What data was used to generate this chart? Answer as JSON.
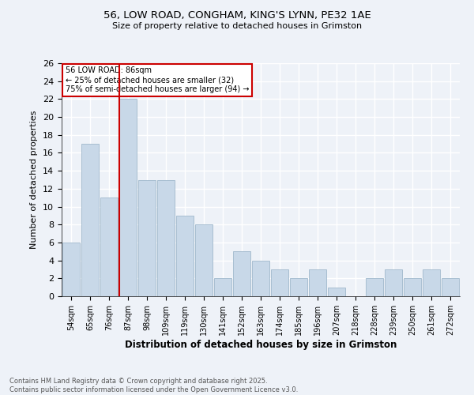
{
  "title_line1": "56, LOW ROAD, CONGHAM, KING'S LYNN, PE32 1AE",
  "title_line2": "Size of property relative to detached houses in Grimston",
  "xlabel": "Distribution of detached houses by size in Grimston",
  "ylabel": "Number of detached properties",
  "footer_line1": "Contains HM Land Registry data © Crown copyright and database right 2025.",
  "footer_line2": "Contains public sector information licensed under the Open Government Licence v3.0.",
  "annotation_line1": "56 LOW ROAD: 86sqm",
  "annotation_line2": "← 25% of detached houses are smaller (32)",
  "annotation_line3": "75% of semi-detached houses are larger (94) →",
  "bar_labels": [
    "54sqm",
    "65sqm",
    "76sqm",
    "87sqm",
    "98sqm",
    "109sqm",
    "119sqm",
    "130sqm",
    "141sqm",
    "152sqm",
    "163sqm",
    "174sqm",
    "185sqm",
    "196sqm",
    "207sqm",
    "218sqm",
    "228sqm",
    "239sqm",
    "250sqm",
    "261sqm",
    "272sqm"
  ],
  "bar_values": [
    6,
    17,
    11,
    22,
    13,
    13,
    9,
    8,
    2,
    5,
    4,
    3,
    2,
    3,
    1,
    0,
    2,
    3,
    2,
    3,
    2
  ],
  "bar_color": "#c8d8e8",
  "bar_edge_color": "#a0b8cc",
  "vline_index": 3,
  "vline_color": "#cc0000",
  "ylim": [
    0,
    26
  ],
  "yticks": [
    0,
    2,
    4,
    6,
    8,
    10,
    12,
    14,
    16,
    18,
    20,
    22,
    24,
    26
  ],
  "background_color": "#eef2f8",
  "annotation_box_color": "#ffffff",
  "annotation_box_edge": "#cc0000"
}
